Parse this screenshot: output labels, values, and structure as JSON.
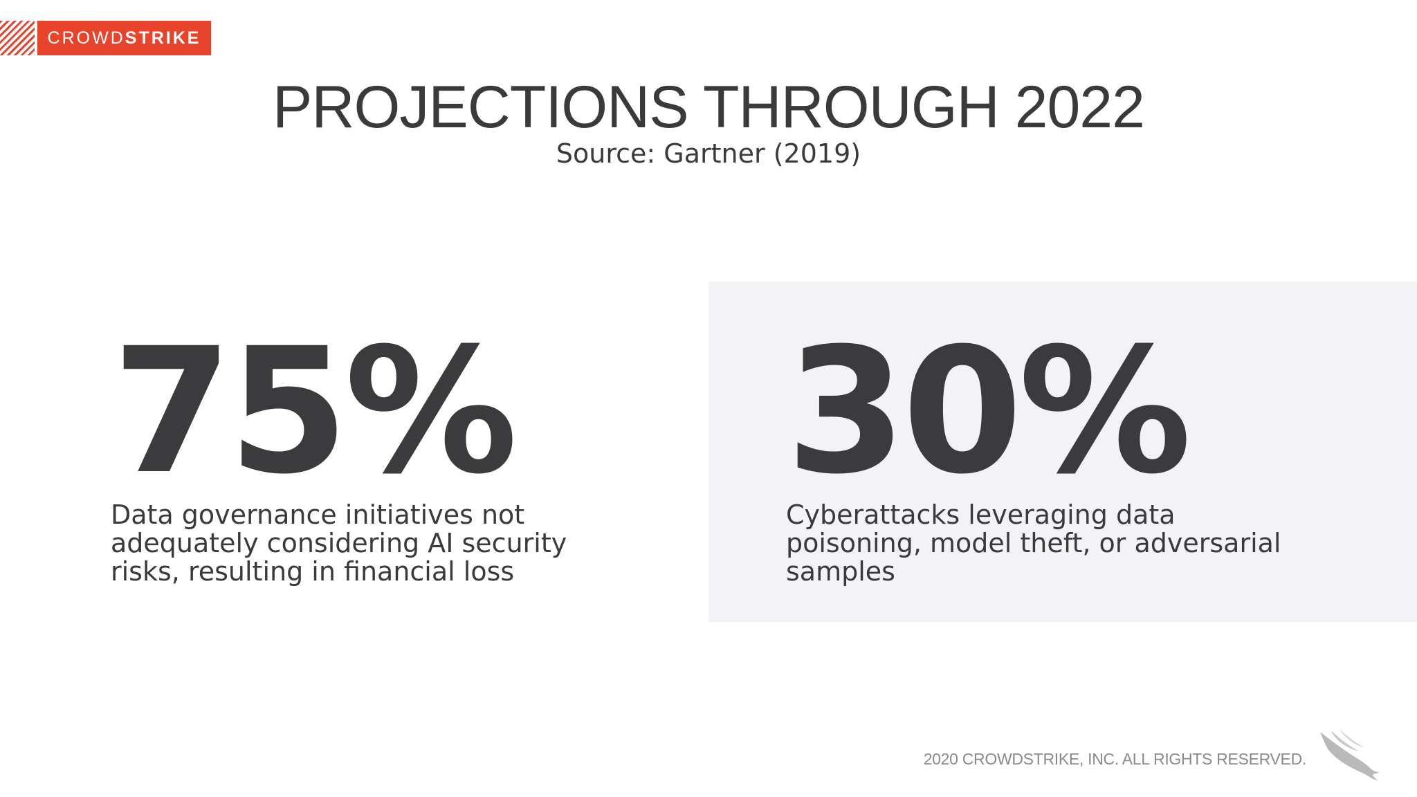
{
  "logo": {
    "text_light": "CROWD",
    "text_bold": "STRIKE",
    "color": "#e8432b"
  },
  "header": {
    "title": "PROJECTIONS THROUGH 2022",
    "subtitle": "Source: Gartner (2019)"
  },
  "stats": [
    {
      "value": "75%",
      "description": "Data governance initiatives not adequately considering AI security risks, resulting in financial loss"
    },
    {
      "value": "30%",
      "description": "Cyberattacks leveraging data poisoning, model theft, or adversarial samples"
    }
  ],
  "panel": {
    "color": "#f3f2f4"
  },
  "footer": {
    "copyright": "2020 CROWDSTRIKE, INC. ALL RIGHTS RESERVED.",
    "icon": "falcon-icon"
  }
}
